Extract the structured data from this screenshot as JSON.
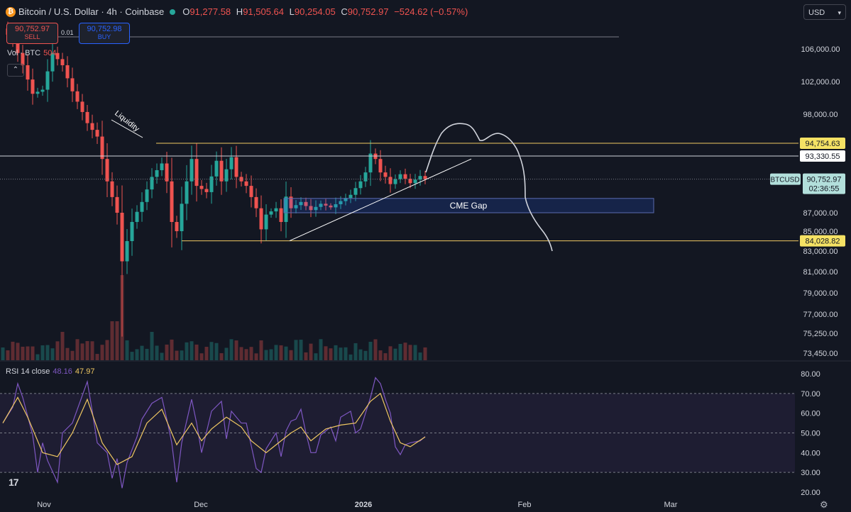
{
  "header": {
    "title": "Bitcoin / U.S. Dollar · 4h · Coinbase",
    "open_label": "O",
    "open": "91,277.58",
    "high_label": "H",
    "high": "91,505.64",
    "low_label": "L",
    "low": "90,254.05",
    "close_label": "C",
    "close": "90,752.97",
    "change": "−524.62 (−0.57%)"
  },
  "trade": {
    "sell_price": "90,752.97",
    "sell_label": "SELL",
    "spread": "0.01",
    "buy_price": "90,752.98",
    "buy_label": "BUY"
  },
  "volume": {
    "label": "Vol · BTC",
    "value": "504"
  },
  "currency": {
    "label": "USD"
  },
  "rsi": {
    "label": "RSI 14 close",
    "value": "48.16",
    "ma_value": "47.97"
  },
  "colors": {
    "background": "#131722",
    "up": "#26a69a",
    "down": "#ef5350",
    "level": "#f0c862",
    "rsi": "#7e57c2",
    "rsi_ma": "#f0c862"
  },
  "chart_data": [
    {
      "type": "candlestick",
      "symbol_label": "BTCUSD",
      "last_price": "90,752.97",
      "countdown": "02:36:55",
      "y_ticks": [
        "106,000.00",
        "102,000.00",
        "98,000.00",
        "87,000.00",
        "85,000.00",
        "83,000.00",
        "81,000.00",
        "79,000.00",
        "77,000.00",
        "75,250.00",
        "73,450.00"
      ],
      "y_tick_values": [
        106000,
        102000,
        98000,
        87000,
        85000,
        83000,
        81000,
        79000,
        77000,
        75250,
        73450
      ],
      "x_ticks": [
        "Nov",
        "Dec",
        "2026",
        "Feb",
        "Mar"
      ],
      "price_levels": [
        {
          "value": 94754.63,
          "label": "94,754.63",
          "style": "yellow"
        },
        {
          "value": 93330.55,
          "label": "93,330.55",
          "style": "white"
        },
        {
          "value": 84028.82,
          "label": "84,028.82",
          "style": "yellow"
        }
      ],
      "annotations": [
        {
          "text": "Liquidity"
        },
        {
          "text": "CME Gap",
          "from": 87000,
          "to": 88600
        }
      ],
      "path_key": [
        [
          0,
          108500
        ],
        [
          2,
          107000
        ],
        [
          4,
          104000
        ],
        [
          6,
          100500
        ],
        [
          8,
          101000
        ],
        [
          10,
          105500
        ],
        [
          12,
          104000
        ],
        [
          14,
          100800
        ],
        [
          17,
          97000
        ],
        [
          19,
          95500
        ],
        [
          21,
          90500
        ],
        [
          23,
          87000
        ],
        [
          24,
          82000
        ],
        [
          26,
          86000
        ],
        [
          28,
          88200
        ],
        [
          30,
          91000
        ],
        [
          32,
          92500
        ],
        [
          33,
          90500
        ],
        [
          34,
          86000
        ],
        [
          35,
          85000
        ],
        [
          36,
          88000
        ],
        [
          38,
          93000
        ],
        [
          39,
          90000
        ],
        [
          41,
          89300
        ],
        [
          43,
          92800
        ],
        [
          44,
          90500
        ],
        [
          46,
          93200
        ],
        [
          47,
          91000
        ],
        [
          49,
          90000
        ],
        [
          51,
          87500
        ],
        [
          52,
          85200
        ],
        [
          53,
          86800
        ],
        [
          55,
          87500
        ],
        [
          56,
          86000
        ],
        [
          57,
          88800
        ],
        [
          58,
          87500
        ],
        [
          60,
          88200
        ],
        [
          62,
          87300
        ],
        [
          64,
          88000
        ],
        [
          66,
          87600
        ],
        [
          68,
          88300
        ],
        [
          70,
          89000
        ],
        [
          72,
          90500
        ],
        [
          73,
          91500
        ],
        [
          74,
          93600
        ],
        [
          75,
          93000
        ],
        [
          76,
          91500
        ],
        [
          77,
          91000
        ],
        [
          78,
          90200
        ],
        [
          80,
          91300
        ],
        [
          82,
          90300
        ],
        [
          84,
          91100
        ],
        [
          85,
          90753
        ]
      ]
    },
    {
      "type": "line",
      "title": "RSI 14 close",
      "y_ticks": [
        "80.00",
        "70.00",
        "60.00",
        "50.00",
        "40.00",
        "30.00",
        "20.00"
      ],
      "y_tick_values": [
        80,
        70,
        60,
        50,
        40,
        30,
        20
      ],
      "bands": [
        30,
        50,
        70
      ],
      "rsi_key": [
        [
          0,
          55
        ],
        [
          2,
          63
        ],
        [
          3,
          75
        ],
        [
          4,
          68
        ],
        [
          6,
          49
        ],
        [
          7,
          30
        ],
        [
          8,
          45
        ],
        [
          9,
          36
        ],
        [
          11,
          25
        ],
        [
          12,
          50
        ],
        [
          14,
          55
        ],
        [
          17,
          76
        ],
        [
          18,
          61
        ],
        [
          19,
          45
        ],
        [
          21,
          40
        ],
        [
          22,
          27
        ],
        [
          23,
          37
        ],
        [
          24,
          22
        ],
        [
          25,
          35
        ],
        [
          27,
          48
        ],
        [
          28,
          57
        ],
        [
          30,
          65
        ],
        [
          32,
          68
        ],
        [
          33,
          57
        ],
        [
          34,
          45
        ],
        [
          35,
          25
        ],
        [
          36,
          45
        ],
        [
          38,
          67
        ],
        [
          39,
          55
        ],
        [
          40,
          40
        ],
        [
          42,
          61
        ],
        [
          44,
          66
        ],
        [
          45,
          47
        ],
        [
          46,
          61
        ],
        [
          48,
          55
        ],
        [
          49,
          55
        ],
        [
          51,
          32
        ],
        [
          52,
          30
        ],
        [
          53,
          42
        ],
        [
          55,
          50
        ],
        [
          56,
          38
        ],
        [
          57,
          51
        ],
        [
          58,
          56
        ],
        [
          59,
          57
        ],
        [
          60,
          62
        ],
        [
          61,
          50
        ],
        [
          62,
          40
        ],
        [
          63,
          40
        ],
        [
          64,
          49
        ],
        [
          66,
          53
        ],
        [
          67,
          46
        ],
        [
          68,
          58
        ],
        [
          70,
          61
        ],
        [
          71,
          50
        ],
        [
          72,
          52
        ],
        [
          73,
          60
        ],
        [
          74,
          68
        ],
        [
          75,
          78
        ],
        [
          76,
          75
        ],
        [
          77,
          67
        ],
        [
          78,
          60
        ],
        [
          79,
          43
        ],
        [
          80,
          39
        ],
        [
          81,
          44
        ],
        [
          82,
          45
        ],
        [
          84,
          46
        ],
        [
          85,
          48.16
        ]
      ],
      "rsi_ma_key": [
        [
          0,
          55
        ],
        [
          3,
          68
        ],
        [
          5,
          58
        ],
        [
          8,
          40
        ],
        [
          11,
          38
        ],
        [
          14,
          50
        ],
        [
          17,
          67
        ],
        [
          20,
          45
        ],
        [
          23,
          34
        ],
        [
          26,
          38
        ],
        [
          29,
          55
        ],
        [
          32,
          62
        ],
        [
          35,
          44
        ],
        [
          38,
          55
        ],
        [
          40,
          46
        ],
        [
          42,
          52
        ],
        [
          45,
          58
        ],
        [
          48,
          53
        ],
        [
          50,
          46
        ],
        [
          53,
          40
        ],
        [
          56,
          46
        ],
        [
          58,
          50
        ],
        [
          60,
          53
        ],
        [
          62,
          46
        ],
        [
          65,
          52
        ],
        [
          68,
          54
        ],
        [
          71,
          55
        ],
        [
          74,
          66
        ],
        [
          76,
          70
        ],
        [
          78,
          56
        ],
        [
          80,
          45
        ],
        [
          82,
          43
        ],
        [
          85,
          47.97
        ]
      ]
    }
  ]
}
